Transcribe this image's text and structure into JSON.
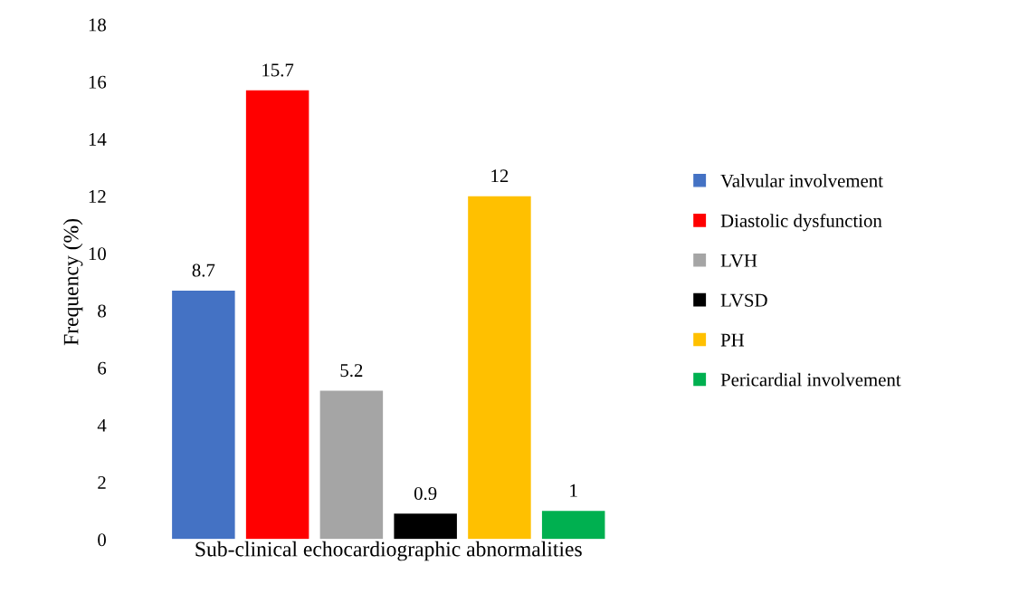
{
  "chart_data": {
    "type": "bar",
    "ylabel": "Frequency (%)",
    "xlabel": "Sub-clinical echocardiographic abnormalities",
    "categories": [
      null
    ],
    "series": [
      {
        "name": "Valvular involvement",
        "color": "#4472c4",
        "values": [
          8.7
        ]
      },
      {
        "name": "Diastolic dysfunction",
        "color": "#ff0000",
        "values": [
          15.7
        ]
      },
      {
        "name": "LVH",
        "color": "#a5a5a5",
        "values": [
          5.2
        ]
      },
      {
        "name": "LVSD",
        "color": "#000000",
        "values": [
          0.9
        ]
      },
      {
        "name": "PH",
        "color": "#ffc000",
        "values": [
          12
        ]
      },
      {
        "name": "Pericardial involvement",
        "color": "#00b050",
        "values": [
          1
        ]
      }
    ],
    "ylim": [
      0,
      18
    ],
    "yticks": [
      0,
      2,
      4,
      6,
      8,
      10,
      12,
      14,
      16,
      18
    ],
    "data_labels": true,
    "grid": false,
    "legend": "right"
  }
}
